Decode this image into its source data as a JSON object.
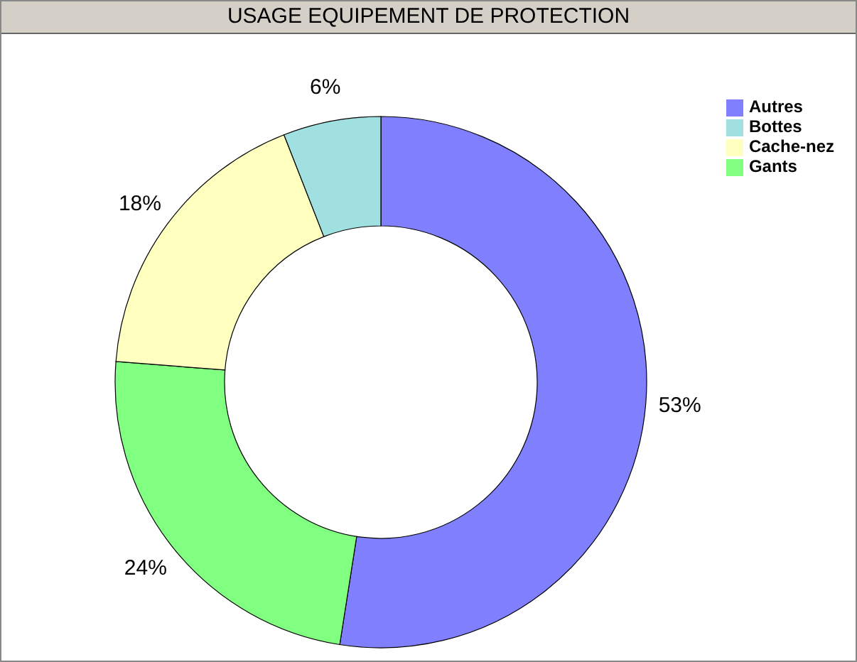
{
  "chart_data": {
    "type": "donut",
    "title": "USAGE EQUIPEMENT DE PROTECTION",
    "categories": [
      "Autres",
      "Gants",
      "Cache-nez",
      "Bottes"
    ],
    "values": [
      53,
      24,
      18,
      6
    ],
    "value_labels": [
      "53%",
      "24%",
      "18%",
      "6%"
    ],
    "colors": [
      "#8080ff",
      "#80ff80",
      "#ffffc0",
      "#a0e0e0"
    ],
    "legend": "top right"
  }
}
